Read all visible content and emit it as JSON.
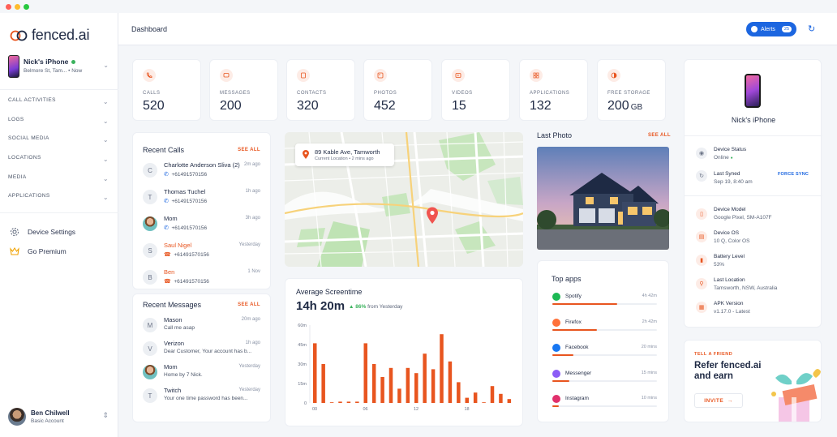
{
  "app": {
    "logo_text": "fenced.ai"
  },
  "header": {
    "title": "Dashboard",
    "alerts_label": "Alerts",
    "alerts_count": "25"
  },
  "device": {
    "name": "Nick's iPhone",
    "location": "Belmore St, Tam...",
    "status_time": "Now"
  },
  "nav": [
    {
      "label": "Call Activities"
    },
    {
      "label": "Logs"
    },
    {
      "label": "Social Media"
    },
    {
      "label": "Locations"
    },
    {
      "label": "Media"
    },
    {
      "label": "Applications"
    }
  ],
  "side_links": {
    "settings": "Device Settings",
    "premium": "Go Premium"
  },
  "user": {
    "name": "Ben Chilwell",
    "role": "Basic Account"
  },
  "stats": [
    {
      "label": "Calls",
      "value": "520"
    },
    {
      "label": "Messages",
      "value": "200"
    },
    {
      "label": "Contacts",
      "value": "320"
    },
    {
      "label": "Photos",
      "value": "452"
    },
    {
      "label": "Videos",
      "value": "15"
    },
    {
      "label": "Applications",
      "value": "132"
    },
    {
      "label": "Free Storage",
      "value": "200",
      "unit": "GB"
    }
  ],
  "recent_calls": {
    "title": "Recent Calls",
    "see_all": "SEE ALL",
    "items": [
      {
        "initial": "C",
        "name": "Charlotte Anderson Sliva (2)",
        "number": "+61491570156",
        "time": "2m ago",
        "missed": false
      },
      {
        "initial": "T",
        "name": "Thomas Tuchel",
        "number": "+61491570156",
        "time": "1h ago",
        "missed": false
      },
      {
        "initial": "",
        "name": "Mom",
        "number": "+61491570156",
        "time": "3h ago",
        "missed": false
      },
      {
        "initial": "S",
        "name": "Saul Nigel",
        "number": "+61491570156",
        "time": "Yesterday",
        "missed": true
      },
      {
        "initial": "B",
        "name": "Ben",
        "number": "+61491570156",
        "time": "1 Nov",
        "missed": true
      }
    ]
  },
  "recent_messages": {
    "title": "Recent Messages",
    "see_all": "SEE ALL",
    "items": [
      {
        "initial": "M",
        "name": "Mason",
        "text": "Call me asap",
        "time": "20m ago"
      },
      {
        "initial": "V",
        "name": "Verizon",
        "text": "Dear Customer, Your account has b...",
        "time": "1h ago"
      },
      {
        "initial": "",
        "name": "Mom",
        "text": "Home by 7 Nick.",
        "time": "Yesterday"
      },
      {
        "initial": "T",
        "name": "Twitch",
        "text": "Your one time password has been...",
        "time": "Yesterday"
      }
    ]
  },
  "map": {
    "address": "89 Kable Ave, Tamworth",
    "sub": "Current Location",
    "time": "2 mins ago"
  },
  "screentime": {
    "title": "Average Screentime",
    "value": "14h 20m",
    "delta": "86%",
    "delta_suffix": "from Yesterday"
  },
  "chart_data": {
    "type": "bar",
    "y_ticks": [
      "60m",
      "45m",
      "30m",
      "15m",
      "0"
    ],
    "x_ticks": [
      "00",
      "06",
      "12",
      "18"
    ],
    "ylim": [
      0,
      60
    ],
    "values": [
      46,
      30,
      0,
      1,
      1,
      1,
      46,
      30,
      20,
      27,
      11,
      27,
      23,
      38,
      26,
      53,
      32,
      16,
      4,
      8,
      0,
      13,
      7,
      3
    ]
  },
  "last_photo": {
    "title": "Last Photo",
    "see_all": "SEE ALL"
  },
  "top_apps": {
    "title": "Top apps",
    "items": [
      {
        "name": "Spotify",
        "time": "4h 42m",
        "fraction": 0.62,
        "color": "#1db954"
      },
      {
        "name": "Firefox",
        "time": "2h 42m",
        "fraction": 0.43,
        "color": "#ff7139"
      },
      {
        "name": "Facebook",
        "time": "20 mins",
        "fraction": 0.2,
        "color": "#1877f2"
      },
      {
        "name": "Messenger",
        "time": "15 mins",
        "fraction": 0.16,
        "color": "#8b5cf6"
      },
      {
        "name": "Instagram",
        "time": "10 mins",
        "fraction": 0.06,
        "color": "#e1306c"
      }
    ]
  },
  "device_info": {
    "name": "Nick's iPhone",
    "status_label": "Device Status",
    "status_value": "Online",
    "synced_label": "Last Syned",
    "synced_value": "Sep 19, 8:40 am",
    "force_sync": "FORCE SYNC",
    "model_label": "Device Model",
    "model_value": "Google Pixel, SM-A107F",
    "os_label": "Device OS",
    "os_value": "10 Q, Color OS",
    "battery_label": "Battery Level",
    "battery_value": "53%",
    "location_label": "Last Location",
    "location_value": "Tamsworth, NSW, Australia",
    "apk_label": "APK Version",
    "apk_value": "v1.17.0 - Latest"
  },
  "refer": {
    "tag": "TELL A FRIEND",
    "headline": "Refer fenced.ai and earn",
    "invite": "INVITE"
  },
  "colors": {
    "accent": "#e8551f",
    "primary": "#1c66e0",
    "online": "#3bb25d"
  }
}
